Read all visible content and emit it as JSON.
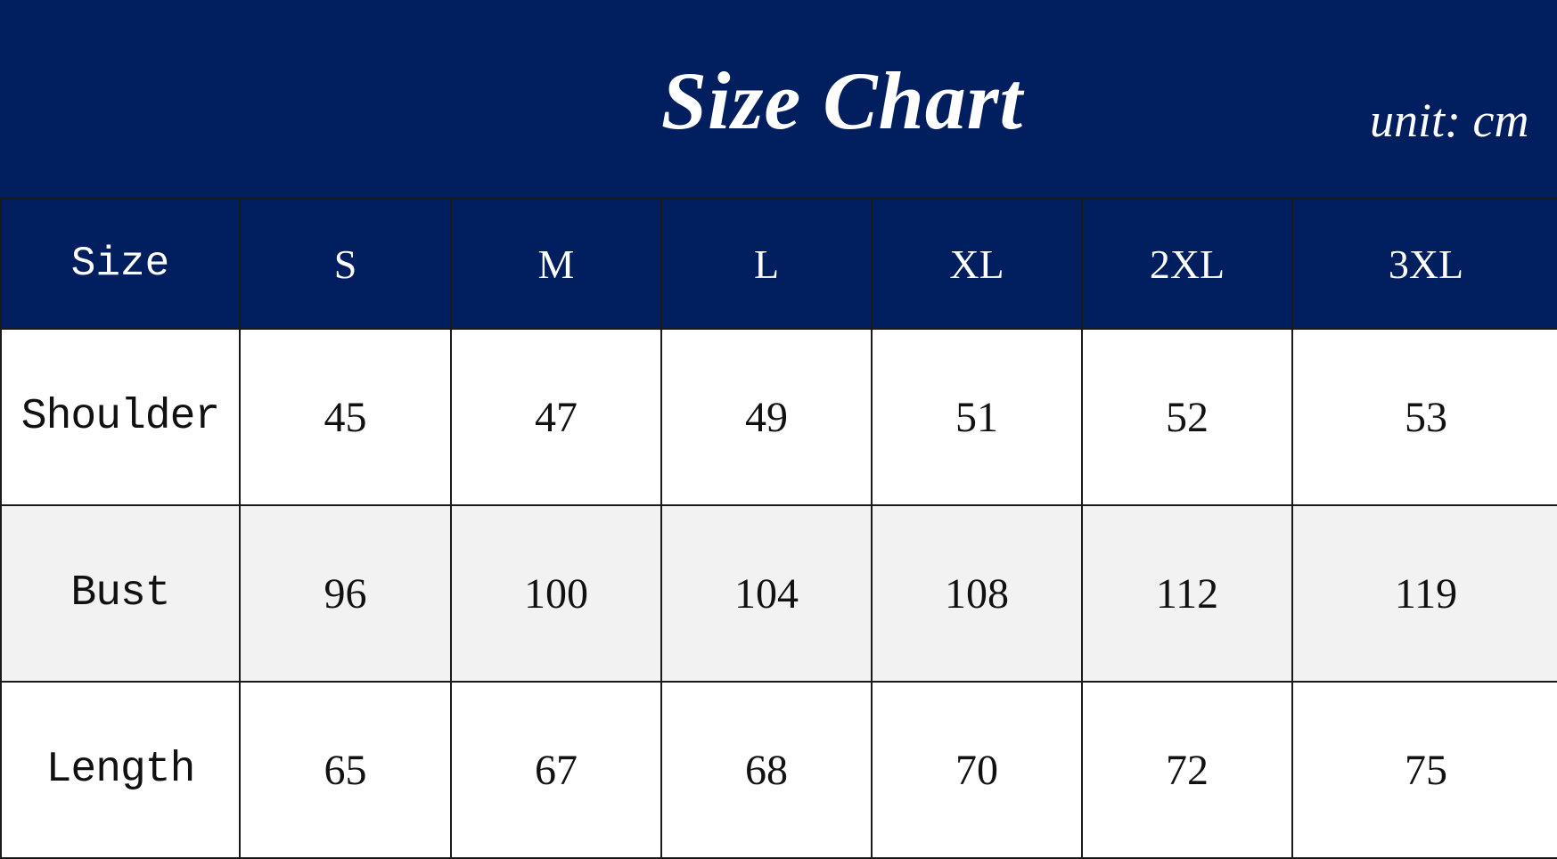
{
  "chart_data": {
    "type": "table",
    "title": "Size Chart",
    "unit_label": "unit: cm",
    "columns": [
      "Size",
      "S",
      "M",
      "L",
      "XL",
      "2XL",
      "3XL"
    ],
    "rows": [
      {
        "label": "Shoulder",
        "values": [
          "45",
          "47",
          "49",
          "51",
          "52",
          "53"
        ]
      },
      {
        "label": "Bust",
        "values": [
          "96",
          "100",
          "104",
          "108",
          "112",
          "119"
        ]
      },
      {
        "label": "Length",
        "values": [
          "65",
          "67",
          "68",
          "70",
          "72",
          "75"
        ]
      }
    ],
    "colors": {
      "header": "#011f5e",
      "alt_row": "#f2f2f2",
      "header_text": "#ffffff"
    }
  }
}
